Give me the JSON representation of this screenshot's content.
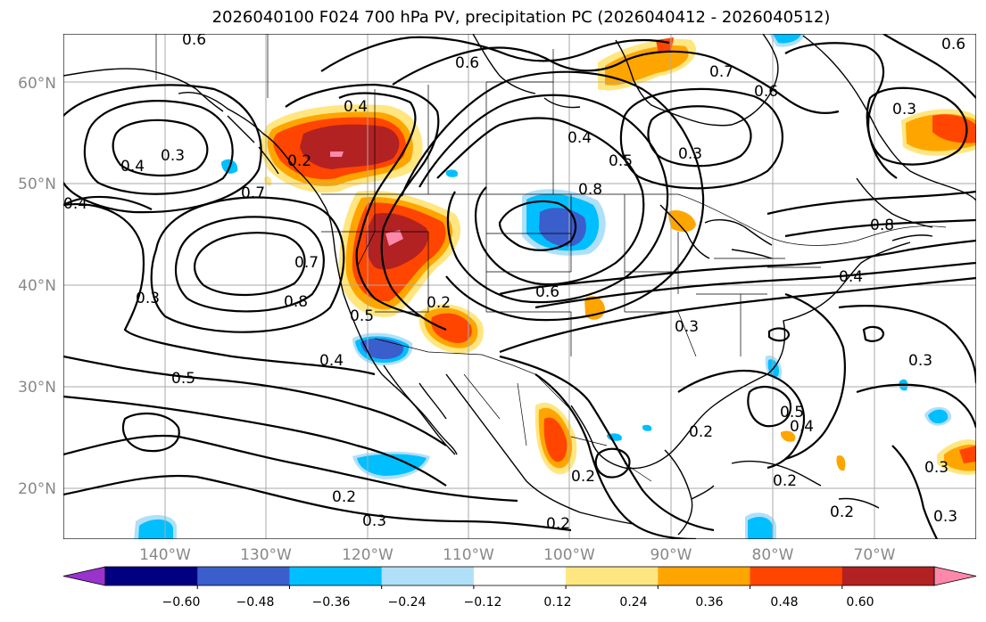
{
  "title": "2026040100 F024 700 hPa PV, precipitation PC (2026040412 - 2026040512)",
  "map": {
    "lat_labels": [
      "60°N",
      "50°N",
      "40°N",
      "30°N",
      "20°N"
    ],
    "lon_labels": [
      "140°W",
      "130°W",
      "120°W",
      "110°W",
      "100°W",
      "90°W",
      "80°W",
      "70°W"
    ],
    "contour_labels": [
      "0.6",
      "0.6",
      "0.7",
      "0.6",
      "0.6",
      "0.4",
      "0.3",
      "0.4",
      "0.3",
      "0.4",
      "0.5",
      "0.3",
      "0.8",
      "0.7",
      "0.4",
      "0.8",
      "0.7",
      "0.8",
      "0.3",
      "0.5",
      "0.2",
      "0.6",
      "0.3",
      "0.4",
      "0.5",
      "0.4",
      "0.2",
      "0.5",
      "0.4",
      "0.3",
      "0.2",
      "0.3",
      "0.2",
      "0.2",
      "0.3",
      "0.2",
      "0.3",
      "0.2",
      "0.2"
    ]
  },
  "colorbar": {
    "ticks": [
      "−0.60",
      "−0.48",
      "−0.36",
      "−0.24",
      "−0.12",
      "0.12",
      "0.24",
      "0.36",
      "0.48",
      "0.60"
    ],
    "colors": [
      "#9933cc",
      "#000080",
      "#3a5fcd",
      "#00bfff",
      "#b0e0f8",
      "#ffffff",
      "#ffe680",
      "#ffa500",
      "#ff4500",
      "#b22222",
      "#ff88aa"
    ]
  }
}
